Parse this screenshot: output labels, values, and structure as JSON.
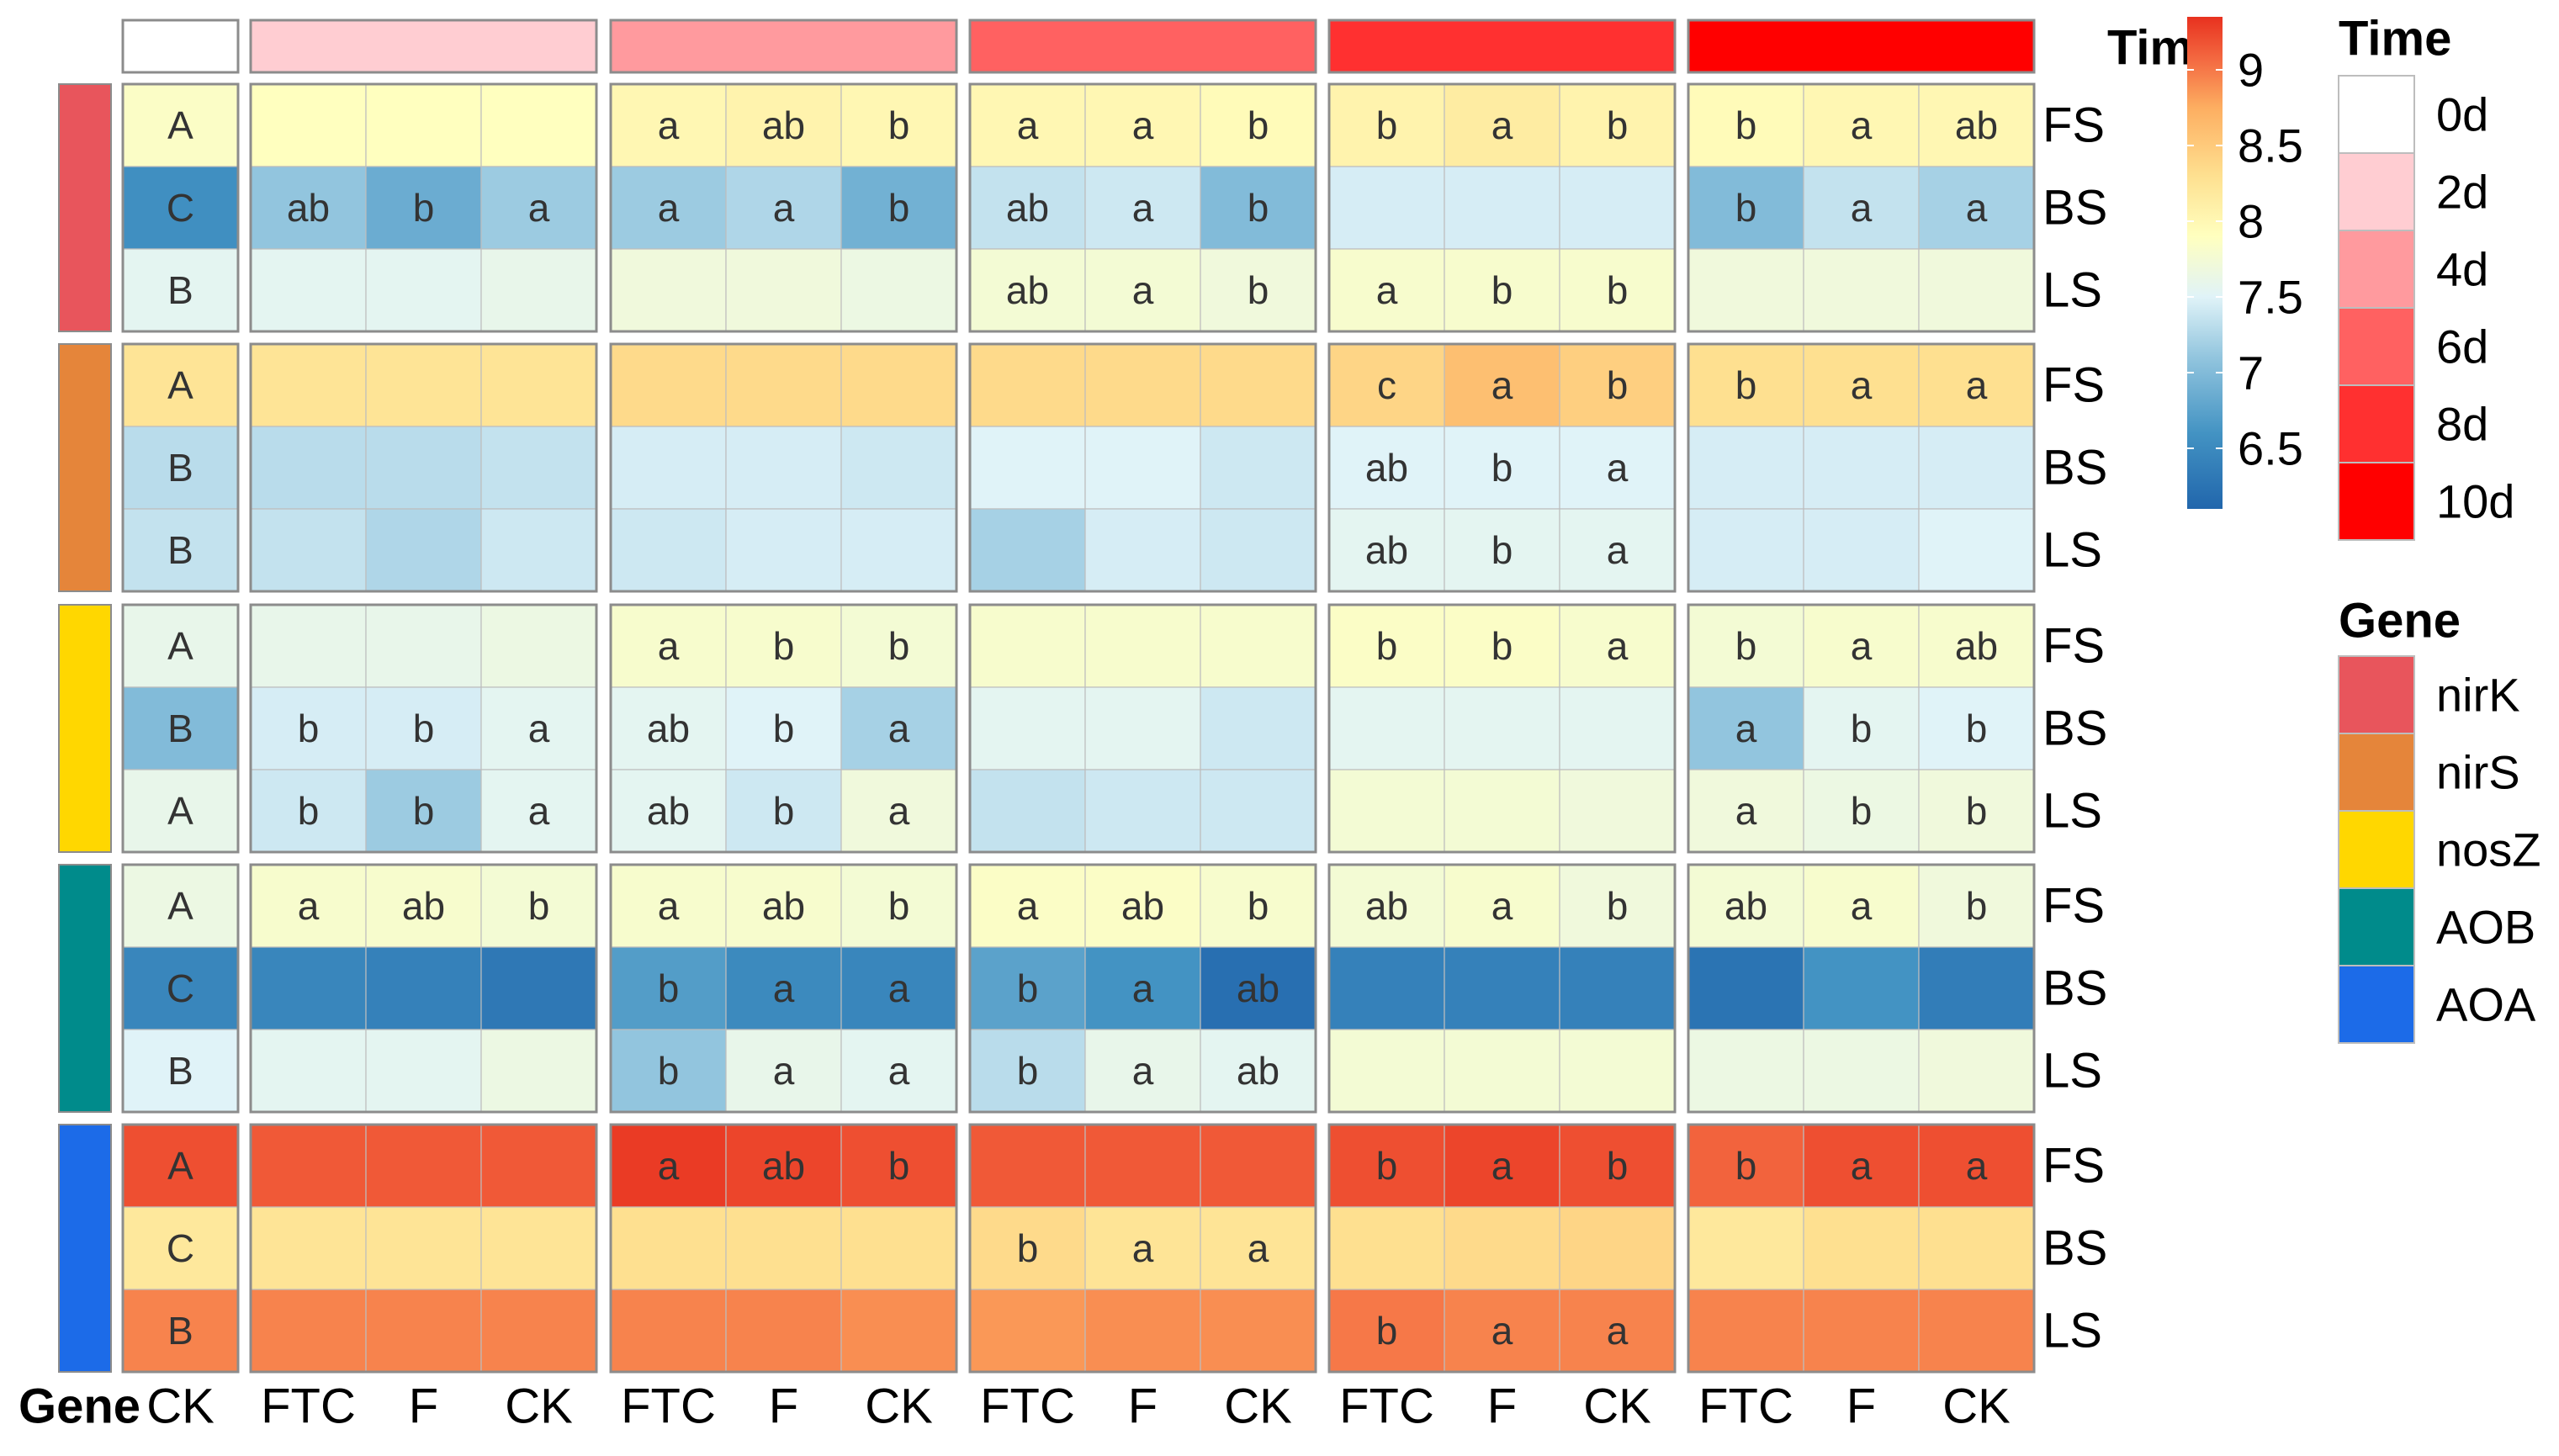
{
  "chart_data": {
    "type": "heatmap",
    "title": "",
    "time_annotation": {
      "title": "Time",
      "levels": [
        "0d",
        "2d",
        "4d",
        "6d",
        "8d",
        "10d"
      ],
      "colors": [
        "#FFFFFF",
        "#FFCDD2",
        "#FF9A9E",
        "#FF6161",
        "#FF3030",
        "#FF0000"
      ]
    },
    "gene_annotation": {
      "title": "Gene",
      "levels": [
        "nirK",
        "nirS",
        "nosZ",
        "AOB",
        "AOA"
      ],
      "colors": [
        "#E8555C",
        "#E5853A",
        "#FFD700",
        "#008B8B",
        "#1C6BE8"
      ]
    },
    "colorbar": {
      "min": 6.1,
      "max": 9.35,
      "ticks": [
        "9",
        "8.5",
        "8",
        "7.5",
        "7",
        "6.5"
      ],
      "tick_values": [
        9,
        8.5,
        8,
        7.5,
        7,
        6.5
      ],
      "stops": [
        {
          "value": 6.1,
          "color": "#2166AC"
        },
        {
          "value": 6.6,
          "color": "#4393C3"
        },
        {
          "value": 7.1,
          "color": "#92C5DE"
        },
        {
          "value": 7.5,
          "color": "#E0F3F8"
        },
        {
          "value": 7.9,
          "color": "#FFFFBF"
        },
        {
          "value": 8.3,
          "color": "#FEE090"
        },
        {
          "value": 8.75,
          "color": "#FDAE61"
        },
        {
          "value": 9.05,
          "color": "#F46D43"
        },
        {
          "value": 9.35,
          "color": "#E8311F"
        }
      ]
    },
    "column_groups": [
      {
        "time": "0d",
        "columns": [
          "CK"
        ]
      },
      {
        "time": "2d",
        "columns": [
          "FTC",
          "F",
          "CK"
        ]
      },
      {
        "time": "4d",
        "columns": [
          "FTC",
          "F",
          "CK"
        ]
      },
      {
        "time": "6d",
        "columns": [
          "FTC",
          "F",
          "CK"
        ]
      },
      {
        "time": "8d",
        "columns": [
          "FTC",
          "F",
          "CK"
        ]
      },
      {
        "time": "10d",
        "columns": [
          "FTC",
          "F",
          "CK"
        ]
      }
    ],
    "gene_label": "Gene",
    "row_blocks": [
      {
        "gene": "nirK",
        "rows": [
          {
            "name": "FS",
            "values": [
              7.85,
              7.9,
              7.9,
              7.9,
              8.0,
              8.05,
              8.0,
              8.0,
              8.0,
              7.95,
              8.05,
              8.15,
              8.05,
              7.95,
              8.0,
              8.0
            ],
            "labels": [
              "A",
              "",
              "",
              "",
              "a",
              "ab",
              "b",
              "a",
              "a",
              "b",
              "b",
              "a",
              "b",
              "b",
              "a",
              "ab"
            ]
          },
          {
            "name": "BS",
            "values": [
              6.55,
              7.1,
              6.85,
              7.15,
              7.15,
              7.25,
              6.9,
              7.35,
              7.4,
              7.0,
              7.45,
              7.45,
              7.45,
              7.0,
              7.35,
              7.2
            ],
            "labels": [
              "C",
              "ab",
              "b",
              "a",
              "a",
              "a",
              "b",
              "ab",
              "a",
              "b",
              "",
              "",
              "",
              "b",
              "a",
              "a"
            ]
          },
          {
            "name": "LS",
            "values": [
              7.55,
              7.55,
              7.55,
              7.6,
              7.7,
              7.7,
              7.65,
              7.75,
              7.75,
              7.7,
              7.8,
              7.8,
              7.8,
              7.7,
              7.7,
              7.7
            ],
            "labels": [
              "B",
              "",
              "",
              "",
              "",
              "",
              "",
              "ab",
              "a",
              "b",
              "a",
              "b",
              "b",
              "",
              "",
              ""
            ]
          }
        ]
      },
      {
        "gene": "nirS",
        "rows": [
          {
            "name": "FS",
            "values": [
              8.25,
              8.25,
              8.25,
              8.25,
              8.35,
              8.35,
              8.35,
              8.35,
              8.35,
              8.35,
              8.4,
              8.6,
              8.45,
              8.3,
              8.3,
              8.3
            ],
            "labels": [
              "A",
              "",
              "",
              "",
              "",
              "",
              "",
              "",
              "",
              "",
              "c",
              "a",
              "b",
              "b",
              "a",
              "a"
            ]
          },
          {
            "name": "BS",
            "values": [
              7.3,
              7.3,
              7.3,
              7.35,
              7.45,
              7.45,
              7.4,
              7.5,
              7.5,
              7.4,
              7.5,
              7.5,
              7.5,
              7.45,
              7.45,
              7.45
            ],
            "labels": [
              "B",
              "",
              "",
              "",
              "",
              "",
              "",
              "",
              "",
              "",
              "ab",
              "b",
              "a",
              "",
              "",
              ""
            ]
          },
          {
            "name": "LS",
            "values": [
              7.35,
              7.35,
              7.25,
              7.4,
              7.4,
              7.45,
              7.45,
              7.2,
              7.45,
              7.4,
              7.55,
              7.55,
              7.55,
              7.45,
              7.45,
              7.5
            ],
            "labels": [
              "B",
              "",
              "",
              "",
              "",
              "",
              "",
              "",
              "",
              "",
              "ab",
              "b",
              "a",
              "",
              "",
              ""
            ]
          }
        ]
      },
      {
        "gene": "nosZ",
        "rows": [
          {
            "name": "FS",
            "values": [
              7.6,
              7.6,
              7.6,
              7.65,
              7.8,
              7.8,
              7.75,
              7.8,
              7.8,
              7.8,
              7.85,
              7.85,
              7.8,
              7.75,
              7.8,
              7.8
            ],
            "labels": [
              "A",
              "",
              "",
              "",
              "a",
              "b",
              "b",
              "",
              "",
              "",
              "b",
              "b",
              "a",
              "b",
              "a",
              "ab"
            ]
          },
          {
            "name": "BS",
            "values": [
              7.0,
              7.45,
              7.45,
              7.55,
              7.55,
              7.5,
              7.2,
              7.55,
              7.55,
              7.4,
              7.55,
              7.55,
              7.55,
              7.1,
              7.55,
              7.5
            ],
            "labels": [
              "B",
              "b",
              "b",
              "a",
              "ab",
              "b",
              "a",
              "",
              "",
              "",
              "",
              "",
              "",
              "a",
              "b",
              "b"
            ]
          },
          {
            "name": "LS",
            "values": [
              7.6,
              7.4,
              7.15,
              7.55,
              7.55,
              7.4,
              7.7,
              7.35,
              7.4,
              7.4,
              7.75,
              7.75,
              7.7,
              7.7,
              7.65,
              7.7
            ],
            "labels": [
              "A",
              "b",
              "b",
              "a",
              "ab",
              "b",
              "a",
              "",
              "",
              "",
              "",
              "",
              "",
              "a",
              "b",
              "b"
            ]
          }
        ]
      },
      {
        "gene": "AOB",
        "rows": [
          {
            "name": "FS",
            "values": [
              7.65,
              7.8,
              7.8,
              7.75,
              7.8,
              7.8,
              7.75,
              7.85,
              7.85,
              7.8,
              7.75,
              7.8,
              7.7,
              7.75,
              7.8,
              7.7
            ],
            "labels": [
              "A",
              "a",
              "ab",
              "b",
              "a",
              "ab",
              "b",
              "a",
              "ab",
              "b",
              "ab",
              "a",
              "b",
              "ab",
              "a",
              "b"
            ]
          },
          {
            "name": "BS",
            "values": [
              6.45,
              6.45,
              6.4,
              6.3,
              6.7,
              6.5,
              6.45,
              6.75,
              6.6,
              6.2,
              6.4,
              6.4,
              6.4,
              6.25,
              6.6,
              6.35
            ],
            "labels": [
              "C",
              "",
              "",
              "",
              "b",
              "a",
              "a",
              "b",
              "a",
              "ab",
              "",
              "",
              "",
              "",
              "",
              ""
            ]
          },
          {
            "name": "LS",
            "values": [
              7.5,
              7.55,
              7.55,
              7.65,
              7.1,
              7.6,
              7.55,
              7.3,
              7.6,
              7.55,
              7.75,
              7.75,
              7.75,
              7.65,
              7.65,
              7.7
            ],
            "labels": [
              "B",
              "",
              "",
              "",
              "b",
              "a",
              "a",
              "b",
              "a",
              "ab",
              "",
              "",
              "",
              "",
              "",
              ""
            ]
          }
        ]
      },
      {
        "gene": "AOA",
        "rows": [
          {
            "name": "FS",
            "values": [
              9.2,
              9.15,
              9.15,
              9.15,
              9.3,
              9.25,
              9.2,
              9.15,
              9.15,
              9.15,
              9.2,
              9.25,
              9.2,
              9.1,
              9.2,
              9.2
            ],
            "labels": [
              "A",
              "",
              "",
              "",
              "a",
              "ab",
              "b",
              "",
              "",
              "",
              "b",
              "a",
              "b",
              "b",
              "a",
              "a"
            ]
          },
          {
            "name": "BS",
            "values": [
              8.2,
              8.25,
              8.25,
              8.25,
              8.3,
              8.3,
              8.3,
              8.35,
              8.25,
              8.25,
              8.3,
              8.35,
              8.4,
              8.2,
              8.3,
              8.3
            ],
            "labels": [
              "C",
              "",
              "",
              "",
              "",
              "",
              "",
              "b",
              "a",
              "a",
              "",
              "",
              "",
              "",
              "",
              ""
            ]
          },
          {
            "name": "LS",
            "values": [
              8.95,
              8.95,
              8.95,
              8.95,
              8.95,
              8.95,
              8.9,
              8.85,
              8.9,
              8.9,
              9.0,
              8.95,
              8.95,
              8.95,
              8.95,
              8.95
            ],
            "labels": [
              "B",
              "",
              "",
              "",
              "",
              "",
              "",
              "",
              "",
              "",
              "b",
              "a",
              "a",
              "",
              "",
              ""
            ]
          }
        ]
      }
    ]
  }
}
